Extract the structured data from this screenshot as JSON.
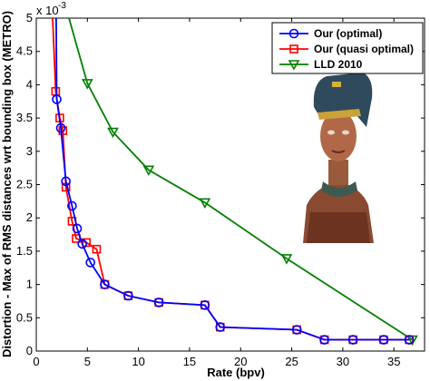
{
  "chart_data": {
    "type": "line",
    "xlabel": "Rate (bpv)",
    "ylabel": "Distortion - Max of RMS distances wrt bounding box (METRO)",
    "y_multiplier_label": "x 10",
    "y_multiplier_exponent": "-3",
    "xlim": [
      0,
      38
    ],
    "ylim": [
      0,
      5
    ],
    "x_ticks": [
      "0",
      "5",
      "10",
      "15",
      "20",
      "25",
      "30",
      "35"
    ],
    "x_tick_values": [
      0,
      5,
      10,
      15,
      20,
      25,
      30,
      35
    ],
    "y_ticks": [
      "0",
      "0.5",
      "1",
      "1.5",
      "2",
      "2.5",
      "3",
      "3.5",
      "4",
      "4.5",
      "5"
    ],
    "y_tick_values": [
      0,
      0.5,
      1,
      1.5,
      2,
      2.5,
      3,
      3.5,
      4,
      4.5,
      5
    ],
    "grid": false,
    "legend_position": "top-right",
    "series": [
      {
        "name": "Our (optimal)",
        "color": "#0000ff",
        "marker": "circle",
        "x": [
          1.9,
          2.0,
          2.4,
          2.9,
          3.5,
          4.0,
          4.5,
          5.3,
          6.7,
          9.0,
          12.0,
          16.5,
          18.0,
          25.5,
          28.2,
          31.0,
          34.0,
          36.5
        ],
        "y": [
          6.0,
          3.78,
          3.35,
          2.55,
          2.18,
          1.84,
          1.61,
          1.33,
          1.0,
          0.83,
          0.73,
          0.69,
          0.36,
          0.32,
          0.17,
          0.17,
          0.17,
          0.17
        ]
      },
      {
        "name": "Our (quasi optimal)",
        "color": "#ff0000",
        "marker": "square",
        "x": [
          1.6,
          1.9,
          2.3,
          2.6,
          2.9,
          3.5,
          3.9,
          4.9,
          5.9,
          6.7,
          9.0,
          12.0,
          16.5,
          18.0,
          25.5,
          28.2,
          31.0,
          34.0,
          36.5
        ],
        "y": [
          5.0,
          3.9,
          3.5,
          3.31,
          2.46,
          1.95,
          1.69,
          1.63,
          1.53,
          1.0,
          0.83,
          0.73,
          0.69,
          0.36,
          0.32,
          0.17,
          0.17,
          0.17,
          0.17
        ]
      },
      {
        "name": "LLD 2010",
        "color": "#008000",
        "marker": "triangle-down",
        "x": [
          3.2,
          5.0,
          7.5,
          11.0,
          16.5,
          24.5,
          36.8
        ],
        "y": [
          5.0,
          4.02,
          3.29,
          2.72,
          2.23,
          1.39,
          0.17
        ]
      }
    ],
    "inset_image": "nefertiti-bust"
  }
}
